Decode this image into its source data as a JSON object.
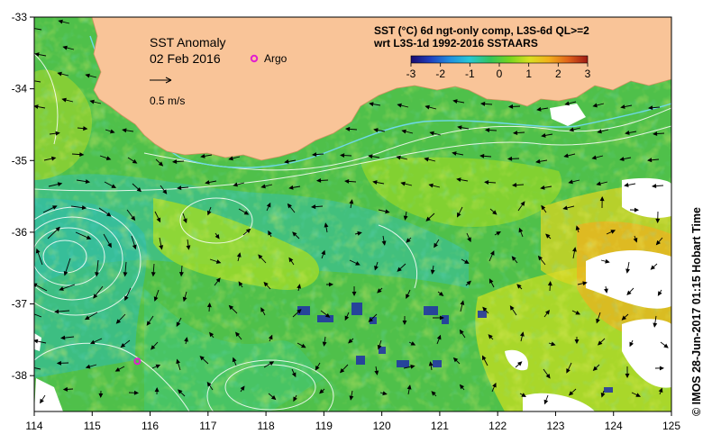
{
  "map": {
    "title": "SST Anomaly",
    "date": "02 Feb 2016",
    "legend_argo": "Argo",
    "scale_label": "0.5 m/s",
    "product_line1": "SST (°C) 6d ngt-only comp, L3S-6d QL>=2",
    "product_line2": "wrt L3S-1d 1992-2016 SSTAARS",
    "credit": "©  IMOS 28-Jun-2017 01:15 Hobart Time",
    "lon_ticks": [
      "114",
      "115",
      "116",
      "117",
      "118",
      "119",
      "120",
      "121",
      "122",
      "123",
      "124",
      "125"
    ],
    "lat_ticks": [
      "-33",
      "-34",
      "-35",
      "-36",
      "-37",
      "-38"
    ],
    "lon_range": [
      114,
      125
    ],
    "lat_range": [
      -38.5,
      -33
    ],
    "colorbar": {
      "ticks": [
        "-3",
        "-2",
        "-1",
        "0",
        "1",
        "2",
        "3"
      ],
      "range": [
        -3,
        3
      ],
      "colors": [
        "#1a0a6e",
        "#1f3fbf",
        "#1f8fe0",
        "#27c7d6",
        "#33c45a",
        "#77d61f",
        "#d9e021",
        "#f2b01c",
        "#e0621a",
        "#9e1a14"
      ]
    },
    "colors": {
      "land": "#f9c498",
      "ocean_base": "#4fc04a",
      "argo_marker": "#e21ecf"
    },
    "argo_float": {
      "lon": 115.78,
      "lat": -37.8
    }
  }
}
